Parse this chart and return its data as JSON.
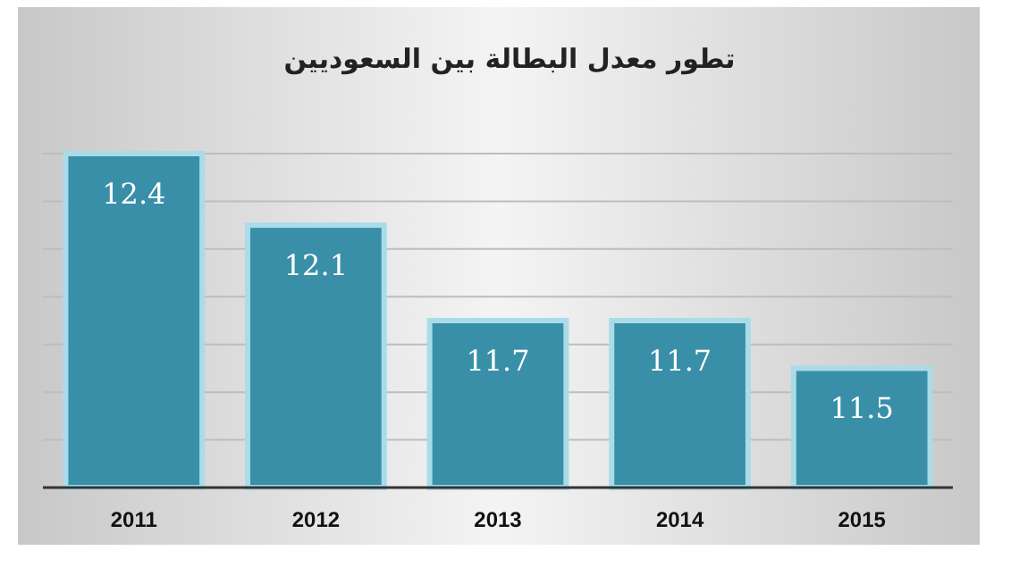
{
  "chart_data": {
    "type": "bar",
    "title": "تطور معدل البطالة بين السعوديين",
    "categories": [
      "2011",
      "2012",
      "2013",
      "2014",
      "2015"
    ],
    "values": [
      12.4,
      12.1,
      11.7,
      11.7,
      11.5
    ],
    "color": "#3a8fa8",
    "ylim": [
      11,
      12.4
    ],
    "yticks": [
      {
        "value": 11.2,
        "label": null
      },
      {
        "value": 11.4,
        "label": null
      },
      {
        "value": 11.6,
        "label": null
      },
      {
        "value": 11.8,
        "label": null
      },
      {
        "value": 12.0,
        "label": null
      },
      {
        "value": 12.2,
        "label": null
      },
      {
        "value": 12.4,
        "label": null
      }
    ],
    "grid": "y",
    "data_labels": true
  }
}
